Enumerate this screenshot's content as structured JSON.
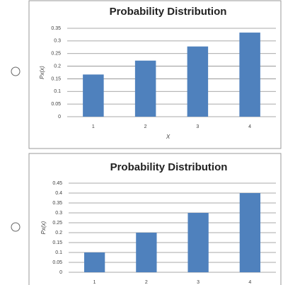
{
  "chart_data": [
    {
      "type": "bar",
      "title": "Probability Distribution",
      "y_label": "Px(x)",
      "x_label": "X",
      "categories": [
        "1",
        "2",
        "3",
        "4"
      ],
      "values": [
        0.167,
        0.222,
        0.278,
        0.333
      ],
      "color": "#4f81bd",
      "ylim": [
        0,
        0.35
      ],
      "yticks": [
        0,
        0.05,
        0.1,
        0.15,
        0.2,
        0.25,
        0.3,
        0.35
      ],
      "grid": true
    },
    {
      "type": "bar",
      "title": "Probability Distribution",
      "y_label": "Px(x)",
      "categories": [
        "1",
        "2",
        "3",
        "4"
      ],
      "values": [
        0.1,
        0.2,
        0.3,
        0.4
      ],
      "color": "#4f81bd",
      "ylim": [
        0,
        0.45
      ],
      "yticks": [
        0,
        0.05,
        0.1,
        0.15,
        0.2,
        0.25,
        0.3,
        0.35,
        0.4,
        0.45
      ],
      "grid": true
    }
  ]
}
